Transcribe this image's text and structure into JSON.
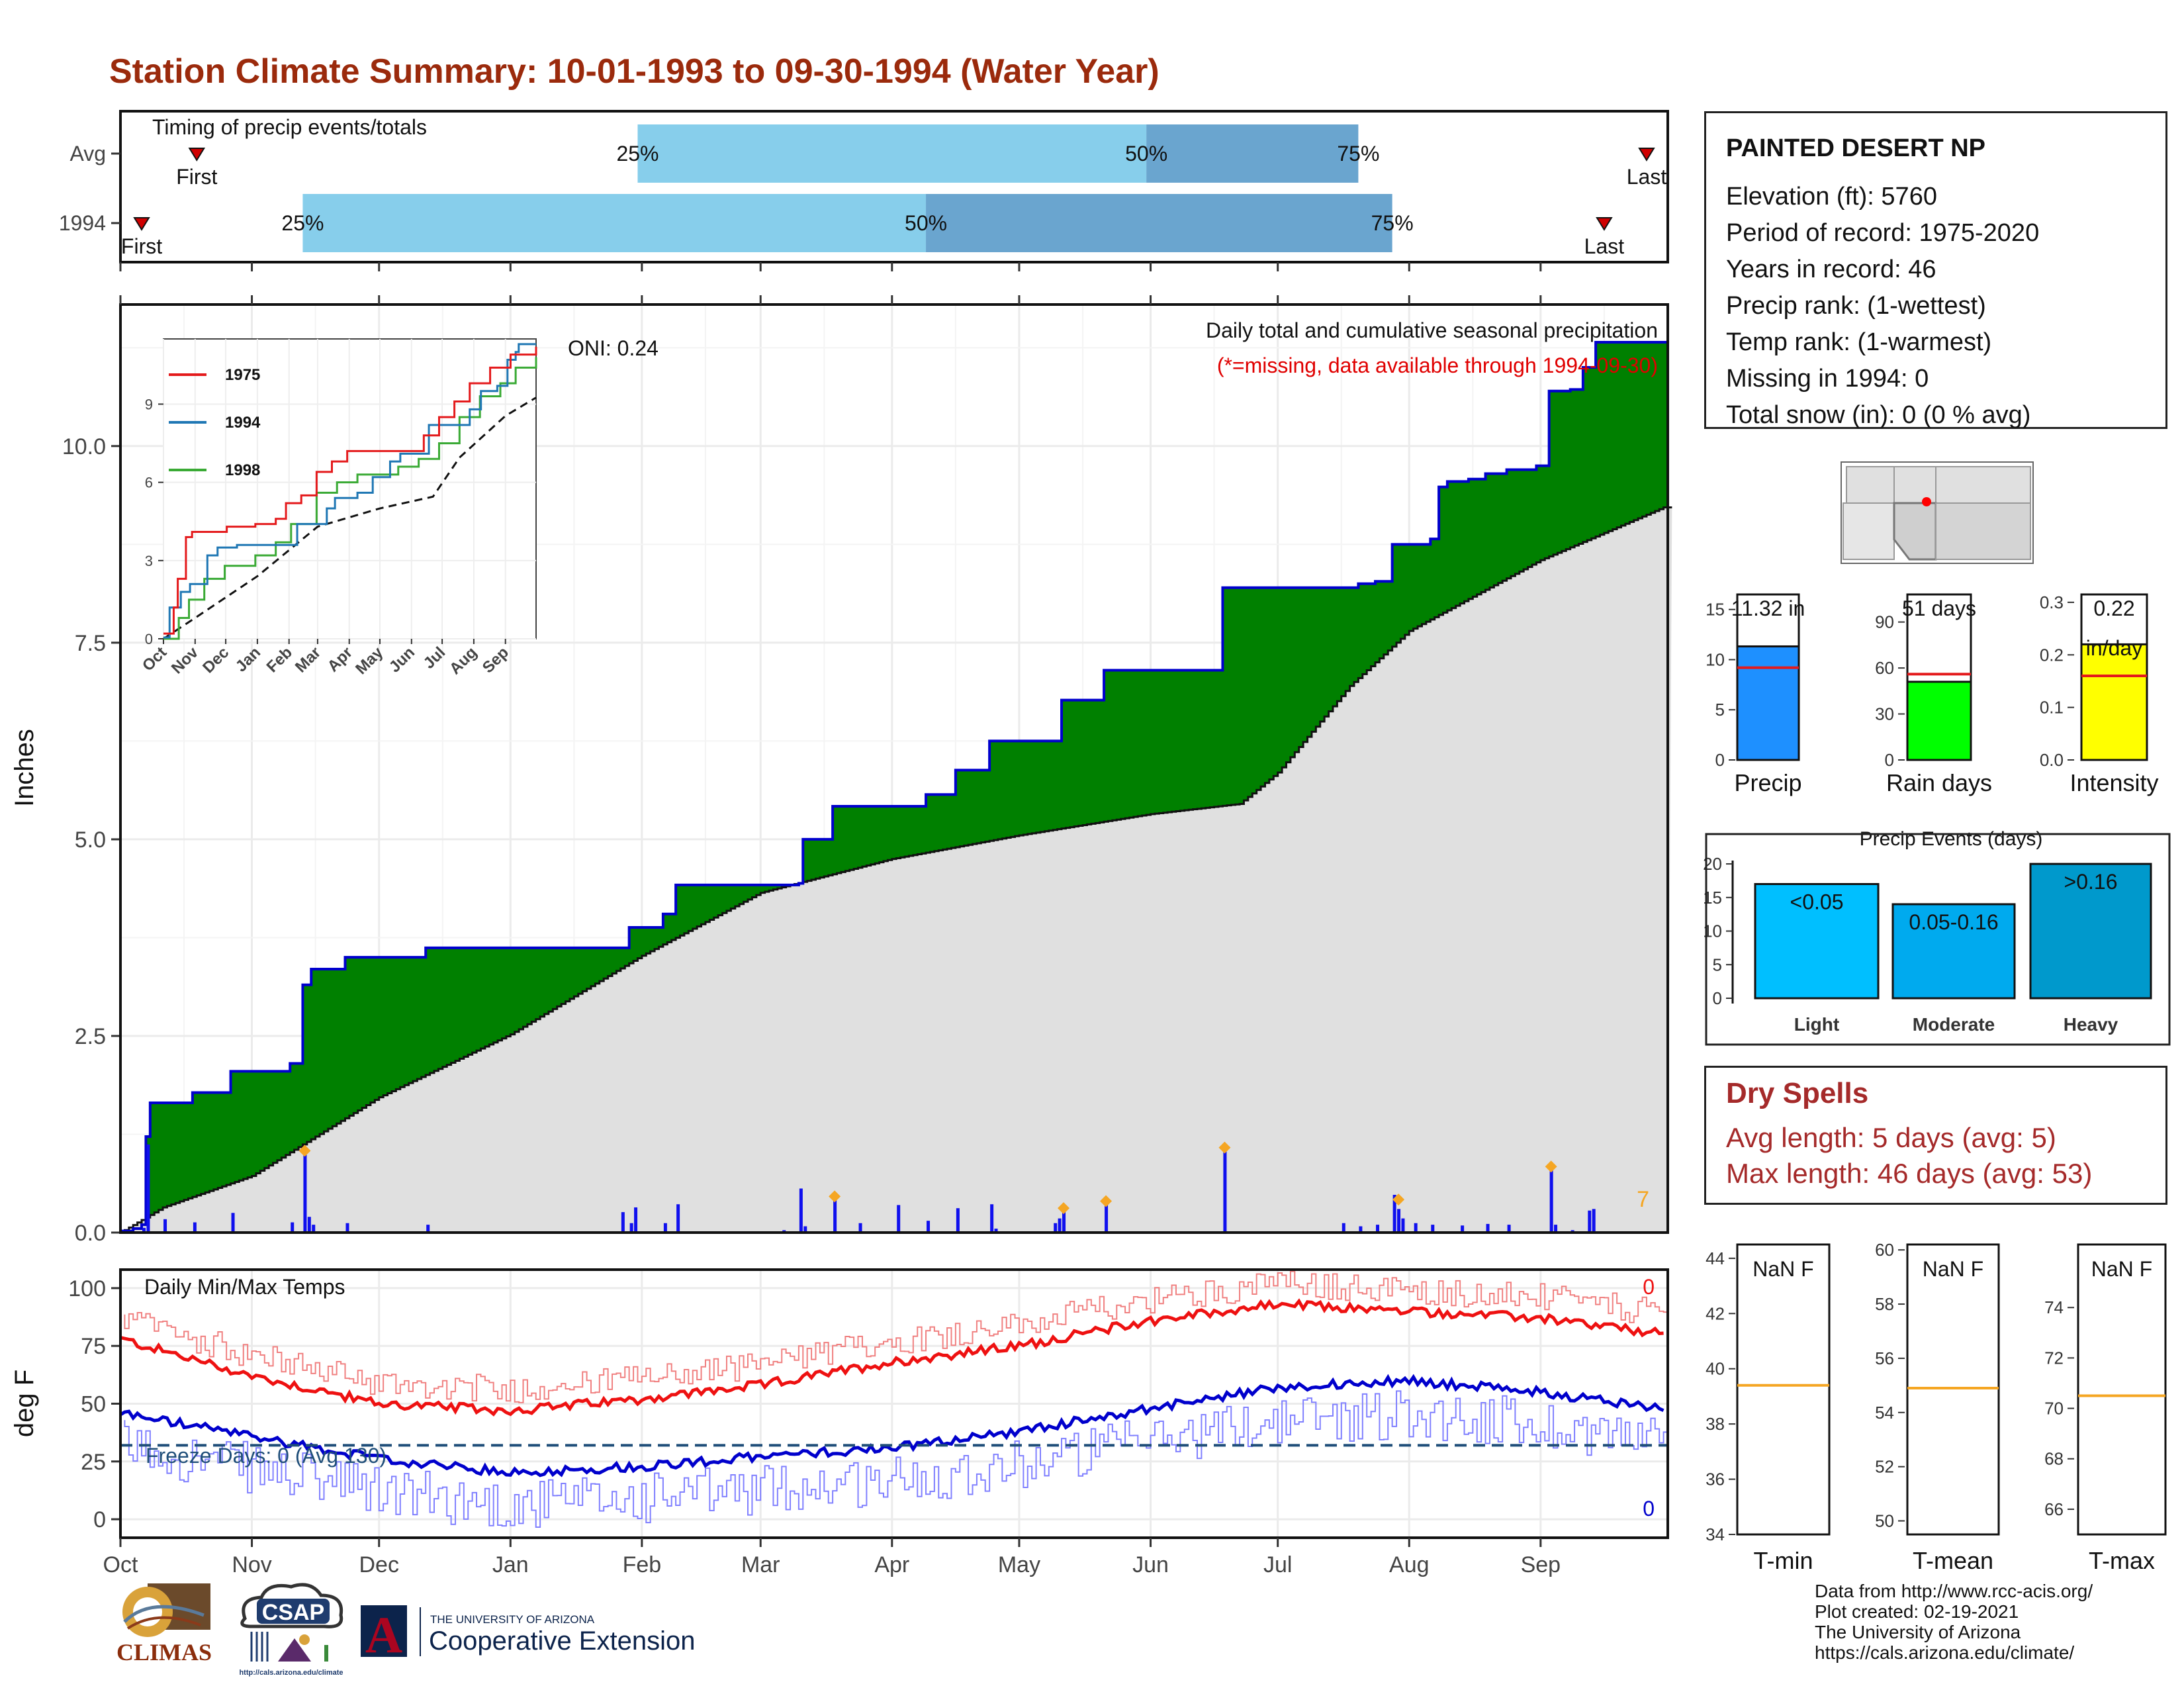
{
  "title": "Station Climate Summary: 10-01-1993 to 09-30-1994 (Water Year)",
  "colors": {
    "title": "#9b2a0c",
    "precip_area": "#008000",
    "precip_edge": "#0000cd",
    "avg_area": "#e0e0e0",
    "daily_bar": "#1010ee",
    "q_light": "#87ceeb",
    "q_dark": "#6aa5cf",
    "tmax": "#ee1111",
    "tmin": "#0000cc",
    "freeze_line": "#1f4e79",
    "precip_bar": "#1e90ff",
    "rain_bar": "#00ff00",
    "intensity_bar": "#ffff00",
    "event_light": "#00bfff",
    "event_moderate": "#00aaee",
    "event_heavy": "#0099cc",
    "orange": "#f5a623",
    "dry_text": "#a52a2a"
  },
  "timing": {
    "caption": "Timing of precip events/totals",
    "rows": [
      {
        "label": "Avg",
        "first_day": 18,
        "q25_day": 122,
        "q50_day": 242,
        "q75_day": 292,
        "last_day": 360,
        "q25_label": "25%",
        "q50_label": "50%",
        "q75_label": "75%",
        "first_label": "First",
        "last_label": "Last"
      },
      {
        "label": "1994",
        "first_day": 5,
        "q25_day": 43,
        "q50_day": 190,
        "q75_day": 300,
        "last_day": 350,
        "q25_label": "25%",
        "q50_label": "50%",
        "q75_label": "75%",
        "first_label": "First",
        "last_label": "Last"
      }
    ]
  },
  "months": [
    "Oct",
    "Nov",
    "Dec",
    "Jan",
    "Feb",
    "Mar",
    "Apr",
    "May",
    "Jun",
    "Jul",
    "Aug",
    "Sep"
  ],
  "month_start_days": [
    0,
    31,
    61,
    92,
    123,
    151,
    182,
    212,
    243,
    273,
    304,
    335
  ],
  "chart_data": [
    {
      "type": "area",
      "title": "Daily total and cumulative seasonal precipitation",
      "subtitle": "(*=missing, data available through 1994-09-30)",
      "ylabel": "Inches",
      "ylim": [
        0,
        11.8
      ],
      "yticks": [
        "0.0",
        "2.5",
        "5.0",
        "7.5",
        "10.0"
      ],
      "oni_label": "ONI: 0.24",
      "corner_count": "7",
      "cumulative_1994_steps": [
        [
          0,
          0.02
        ],
        [
          3,
          0.05
        ],
        [
          5,
          0.1
        ],
        [
          6,
          1.22
        ],
        [
          7,
          1.65
        ],
        [
          17,
          1.78
        ],
        [
          26,
          2.05
        ],
        [
          40,
          2.15
        ],
        [
          43,
          3.15
        ],
        [
          45,
          3.35
        ],
        [
          53,
          3.5
        ],
        [
          72,
          3.62
        ],
        [
          118,
          3.62
        ],
        [
          120,
          3.88
        ],
        [
          128,
          4.05
        ],
        [
          131,
          4.42
        ],
        [
          160,
          4.44
        ],
        [
          161,
          5.0
        ],
        [
          168,
          5.42
        ],
        [
          190,
          5.57
        ],
        [
          197,
          5.88
        ],
        [
          205,
          6.25
        ],
        [
          220,
          6.25
        ],
        [
          222,
          6.77
        ],
        [
          232,
          7.15
        ],
        [
          258,
          7.15
        ],
        [
          260,
          8.2
        ],
        [
          290,
          8.2
        ],
        [
          292,
          8.25
        ],
        [
          296,
          8.28
        ],
        [
          300,
          8.75
        ],
        [
          309,
          8.82
        ],
        [
          311,
          9.48
        ],
        [
          313,
          9.55
        ],
        [
          318,
          9.58
        ],
        [
          322,
          9.65
        ],
        [
          327,
          9.7
        ],
        [
          334,
          9.75
        ],
        [
          337,
          10.7
        ],
        [
          342,
          10.72
        ],
        [
          345,
          11.0
        ],
        [
          348,
          11.32
        ],
        [
          364,
          11.32
        ]
      ],
      "cumulative_avg": [
        [
          0,
          0.0
        ],
        [
          10,
          0.32
        ],
        [
          31,
          0.72
        ],
        [
          61,
          1.72
        ],
        [
          92,
          2.52
        ],
        [
          123,
          3.52
        ],
        [
          151,
          4.32
        ],
        [
          182,
          4.75
        ],
        [
          212,
          5.05
        ],
        [
          243,
          5.32
        ],
        [
          264,
          5.45
        ],
        [
          273,
          5.85
        ],
        [
          290,
          6.95
        ],
        [
          304,
          7.65
        ],
        [
          335,
          8.55
        ],
        [
          364,
          9.22
        ]
      ],
      "daily_bars": [
        [
          5,
          0.06
        ],
        [
          6,
          1.12
        ],
        [
          10,
          0.17
        ],
        [
          17,
          0.13
        ],
        [
          26,
          0.25
        ],
        [
          40,
          0.13
        ],
        [
          43,
          1.0
        ],
        [
          44,
          0.2
        ],
        [
          45,
          0.1
        ],
        [
          53,
          0.12
        ],
        [
          72,
          0.1
        ],
        [
          118,
          0.26
        ],
        [
          120,
          0.12
        ],
        [
          121,
          0.32
        ],
        [
          128,
          0.12
        ],
        [
          131,
          0.36
        ],
        [
          156,
          0.03
        ],
        [
          160,
          0.56
        ],
        [
          161,
          0.08
        ],
        [
          168,
          0.42
        ],
        [
          174,
          0.12
        ],
        [
          183,
          0.35
        ],
        [
          190,
          0.15
        ],
        [
          197,
          0.31
        ],
        [
          205,
          0.36
        ],
        [
          206,
          0.05
        ],
        [
          220,
          0.12
        ],
        [
          221,
          0.18
        ],
        [
          222,
          0.27
        ],
        [
          232,
          0.36
        ],
        [
          260,
          1.04
        ],
        [
          288,
          0.12
        ],
        [
          292,
          0.08
        ],
        [
          296,
          0.1
        ],
        [
          300,
          0.48
        ],
        [
          301,
          0.3
        ],
        [
          302,
          0.18
        ],
        [
          305,
          0.12
        ],
        [
          309,
          0.1
        ],
        [
          316,
          0.09
        ],
        [
          322,
          0.11
        ],
        [
          327,
          0.1
        ],
        [
          337,
          0.8
        ],
        [
          338,
          0.1
        ],
        [
          342,
          0.03
        ],
        [
          346,
          0.28
        ],
        [
          347,
          0.3
        ]
      ],
      "orange_markers": [
        [
          43,
          1.04
        ],
        [
          168,
          0.46
        ],
        [
          222,
          0.31
        ],
        [
          232,
          0.4
        ],
        [
          260,
          1.08
        ],
        [
          301,
          0.42
        ],
        [
          337,
          0.84
        ]
      ],
      "inset": {
        "years": [
          "1975",
          "1994",
          "1998"
        ],
        "yticks": [
          "0",
          "3",
          "6",
          "9"
        ],
        "ylim": [
          0,
          11.5
        ],
        "xlabels": [
          "Oct",
          "Nov",
          "Dec",
          "Jan",
          "Feb",
          "Mar",
          "Apr",
          "May",
          "Jun",
          "Jul",
          "Aug",
          "Sep"
        ],
        "series_1975": [
          [
            0,
            0.2
          ],
          [
            10,
            1.2
          ],
          [
            14,
            2.3
          ],
          [
            22,
            3.9
          ],
          [
            28,
            4.1
          ],
          [
            60,
            4.1
          ],
          [
            62,
            4.3
          ],
          [
            90,
            4.4
          ],
          [
            110,
            4.6
          ],
          [
            120,
            5.2
          ],
          [
            135,
            5.5
          ],
          [
            150,
            6.4
          ],
          [
            165,
            6.8
          ],
          [
            180,
            7.2
          ],
          [
            240,
            7.2
          ],
          [
            255,
            7.8
          ],
          [
            270,
            8.5
          ],
          [
            285,
            9.1
          ],
          [
            300,
            9.8
          ],
          [
            320,
            10.4
          ],
          [
            340,
            10.9
          ],
          [
            365,
            11.2
          ]
        ],
        "series_1994": [
          [
            0,
            0.05
          ],
          [
            6,
            1.2
          ],
          [
            17,
            1.8
          ],
          [
            26,
            2.1
          ],
          [
            43,
            3.2
          ],
          [
            53,
            3.5
          ],
          [
            72,
            3.6
          ],
          [
            118,
            3.6
          ],
          [
            131,
            4.4
          ],
          [
            160,
            5.0
          ],
          [
            168,
            5.4
          ],
          [
            190,
            5.6
          ],
          [
            205,
            6.2
          ],
          [
            222,
            6.8
          ],
          [
            232,
            7.1
          ],
          [
            260,
            8.2
          ],
          [
            300,
            8.8
          ],
          [
            311,
            9.5
          ],
          [
            327,
            9.7
          ],
          [
            337,
            10.7
          ],
          [
            345,
            11.0
          ],
          [
            348,
            11.3
          ],
          [
            365,
            11.3
          ]
        ],
        "series_1998": [
          [
            0,
            0.0
          ],
          [
            15,
            0.8
          ],
          [
            25,
            1.5
          ],
          [
            40,
            2.3
          ],
          [
            60,
            2.8
          ],
          [
            90,
            3.2
          ],
          [
            110,
            3.7
          ],
          [
            125,
            4.4
          ],
          [
            150,
            5.6
          ],
          [
            170,
            6.0
          ],
          [
            190,
            6.3
          ],
          [
            230,
            6.6
          ],
          [
            250,
            6.9
          ],
          [
            270,
            7.5
          ],
          [
            290,
            8.5
          ],
          [
            310,
            9.3
          ],
          [
            330,
            9.8
          ],
          [
            345,
            10.4
          ],
          [
            365,
            10.8
          ]
        ],
        "series_avg": [
          [
            0,
            0.0
          ],
          [
            31,
            0.8
          ],
          [
            92,
            2.4
          ],
          [
            151,
            4.3
          ],
          [
            212,
            5.0
          ],
          [
            264,
            5.45
          ],
          [
            290,
            6.95
          ],
          [
            335,
            8.55
          ],
          [
            365,
            9.25
          ]
        ]
      }
    },
    {
      "type": "line",
      "title": "Daily Min/Max Temps",
      "ylabel": "deg F",
      "ylim": [
        -8,
        108
      ],
      "yticks": [
        "0",
        "25",
        "50",
        "75",
        "100"
      ],
      "freeze_label": "Freeze Days: 0 (Avg 130)",
      "freeze_temp": 32,
      "count_max": "0",
      "count_min": "0",
      "avg_max_anchors": [
        [
          0,
          78
        ],
        [
          31,
          62
        ],
        [
          61,
          50
        ],
        [
          92,
          47
        ],
        [
          123,
          52
        ],
        [
          151,
          58
        ],
        [
          182,
          68
        ],
        [
          212,
          75
        ],
        [
          243,
          86
        ],
        [
          273,
          93
        ],
        [
          304,
          90
        ],
        [
          335,
          87
        ],
        [
          364,
          80
        ]
      ],
      "avg_min_anchors": [
        [
          0,
          46
        ],
        [
          31,
          36
        ],
        [
          61,
          26
        ],
        [
          92,
          20
        ],
        [
          123,
          23
        ],
        [
          151,
          27
        ],
        [
          182,
          31
        ],
        [
          212,
          38
        ],
        [
          243,
          48
        ],
        [
          273,
          57
        ],
        [
          304,
          60
        ],
        [
          335,
          55
        ],
        [
          364,
          48
        ]
      ]
    },
    {
      "type": "bar",
      "title": "",
      "categories": [
        "Precip",
        "Rain days",
        "Intensity"
      ],
      "values": [
        11.32,
        51,
        0.22
      ],
      "averages": [
        9.2,
        56,
        0.16
      ],
      "value_labels": [
        "11.32 in",
        "51 days",
        "0.22"
      ],
      "unit_labels": [
        "",
        "",
        "in/day"
      ],
      "ylims": [
        [
          0,
          16.5
        ],
        [
          0,
          108
        ],
        [
          0,
          0.315
        ]
      ],
      "yticks": [
        [
          "0",
          "5",
          "10",
          "15"
        ],
        [
          "0",
          "30",
          "60",
          "90"
        ],
        [
          "0.0",
          "0.1",
          "0.2",
          "0.3"
        ]
      ]
    },
    {
      "type": "bar",
      "title": "Precip Events (days)",
      "categories": [
        "Light",
        "Moderate",
        "Heavy"
      ],
      "values": [
        17,
        14,
        20
      ],
      "bar_labels": [
        "<0.05",
        "0.05-0.16",
        ">0.16"
      ],
      "ylim": [
        0,
        20.5
      ],
      "yticks": [
        "0",
        "5",
        "10",
        "15",
        "20"
      ]
    },
    {
      "type": "bar",
      "title": "",
      "categories": [
        "T-min",
        "T-mean",
        "T-max"
      ],
      "value_labels": [
        "NaN F",
        "NaN F",
        "NaN F"
      ],
      "averages": [
        39.4,
        54.9,
        70.5
      ],
      "ylims": [
        [
          34,
          44.5
        ],
        [
          49.5,
          60.2
        ],
        [
          65,
          76.5
        ]
      ],
      "yticks": [
        [
          "34",
          "36",
          "38",
          "40",
          "42",
          "44"
        ],
        [
          "50",
          "52",
          "54",
          "56",
          "58",
          "60"
        ],
        [
          "66",
          "68",
          "70",
          "72",
          "74"
        ]
      ]
    }
  ],
  "station": {
    "name": "PAINTED DESERT NP",
    "lines": [
      "Elevation (ft): 5760",
      "Period of record: 1975-2020",
      "Years in record: 46",
      "Precip rank:  (1-wettest)",
      "Temp rank:  (1-warmest)",
      "Missing in 1994: 0",
      "Total snow (in): 0 (0 % avg)"
    ]
  },
  "dry_spells": {
    "title": "Dry Spells",
    "avg_line": "Avg length: 5 days (avg: 5)",
    "max_line": "Max length: 46 days (avg: 53)"
  },
  "credits": [
    "Data from http://www.rcc-acis.org/",
    "Plot created: 02-19-2021",
    "The University of Arizona",
    "https://cals.arizona.edu/climate/"
  ],
  "logos": {
    "climas": "CLIMAS",
    "csap": "CSAP",
    "csap_url": "http://cals.arizona.edu/climate",
    "ua_line1": "THE UNIVERSITY OF ARIZONA",
    "ua_line2": "Cooperative Extension",
    "ua_letter": "A"
  }
}
